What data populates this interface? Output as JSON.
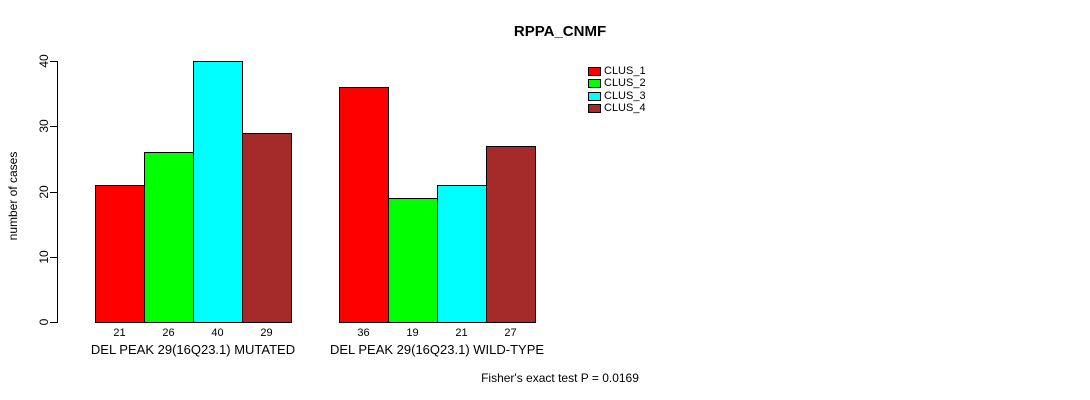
{
  "chart_data": {
    "type": "bar",
    "title": "RPPA_CNMF",
    "ylabel": "number of cases",
    "xlabel": "",
    "ylim": [
      0,
      40
    ],
    "yticks": [
      0,
      10,
      20,
      30,
      40
    ],
    "grid": false,
    "legend_position": "top-right",
    "categories": [
      "DEL PEAK 29(16Q23.1) MUTATED",
      "DEL PEAK 29(16Q23.1) WILD-TYPE"
    ],
    "series": [
      {
        "name": "CLUS_1",
        "color": "#ff0000",
        "values": [
          21,
          36
        ]
      },
      {
        "name": "CLUS_2",
        "color": "#00ff00",
        "values": [
          26,
          19
        ]
      },
      {
        "name": "CLUS_3",
        "color": "#00ffff",
        "values": [
          40,
          21
        ]
      },
      {
        "name": "CLUS_4",
        "color": "#a52a2a",
        "values": [
          29,
          27
        ]
      }
    ],
    "bar_value_labels_shown": true,
    "annotation": "Fisher's exact test P = 0.0169",
    "colors": {
      "axis": "#000000",
      "text": "#000000",
      "background": "#ffffff"
    }
  }
}
